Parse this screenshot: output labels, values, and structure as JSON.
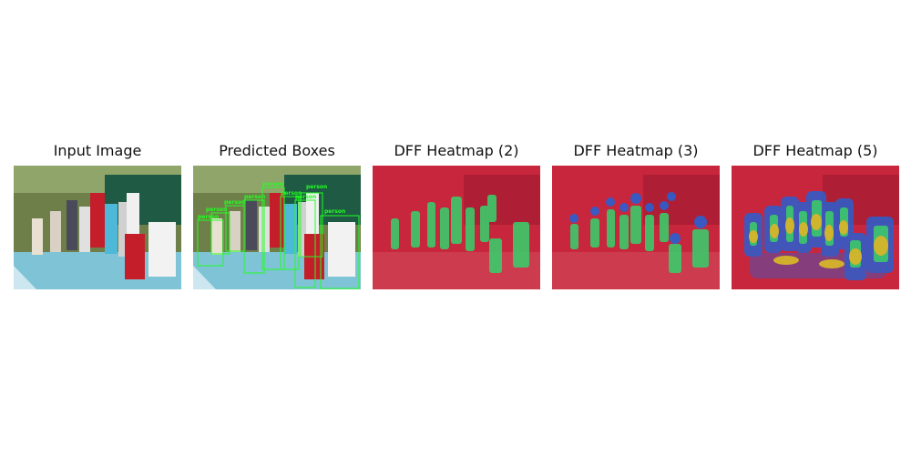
{
  "panels": [
    {
      "id": "input",
      "title": "Input Image"
    },
    {
      "id": "boxes",
      "title": "Predicted Boxes"
    },
    {
      "id": "dff2",
      "title": "DFF Heatmap (2)"
    },
    {
      "id": "dff3",
      "title": "DFF Heatmap (3)"
    },
    {
      "id": "dff5",
      "title": "DFF Heatmap (5)"
    }
  ],
  "box_label": "person",
  "colors": {
    "box": "#22ff22",
    "heat_background": "#c8263c",
    "heat_green": "#3cc96a",
    "heat_blue": "#2b5fd0",
    "heat_yellow": "#d6b52a"
  }
}
